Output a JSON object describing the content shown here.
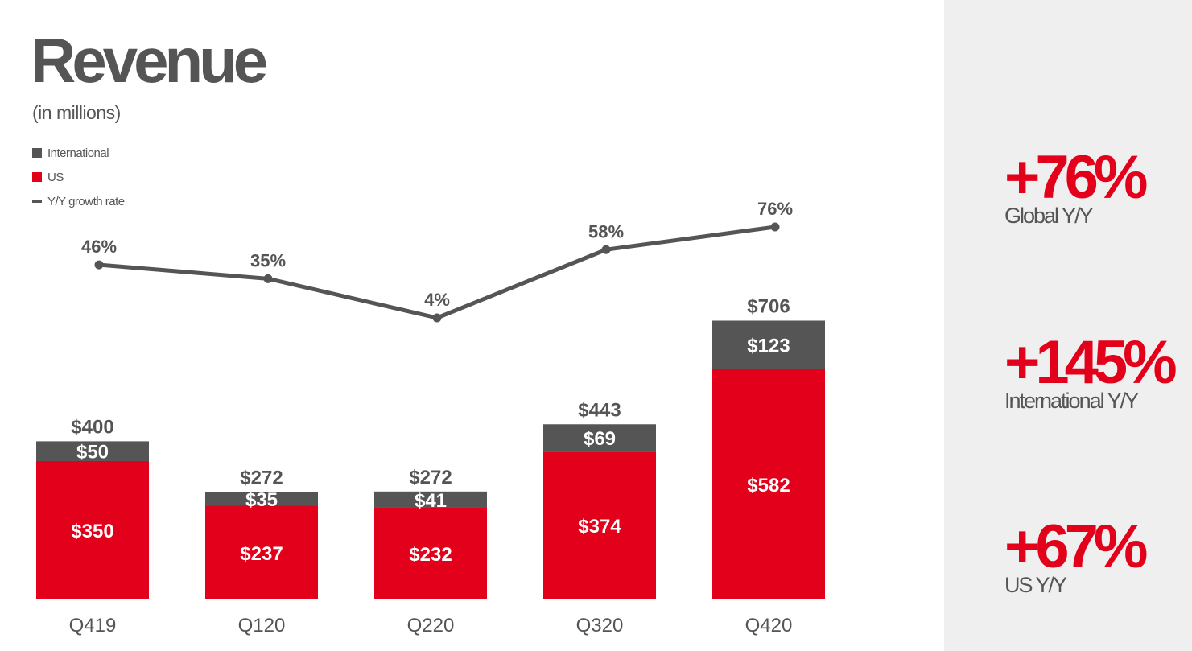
{
  "title": "Revenue",
  "subtitle": "(in millions)",
  "colors": {
    "international": "#555555",
    "us": "#e3001b",
    "growth": "#555555"
  },
  "chart_data": {
    "type": "bar",
    "stacked": true,
    "categories": [
      "Q419",
      "Q120",
      "Q220",
      "Q320",
      "Q420"
    ],
    "series": [
      {
        "name": "US",
        "values": [
          350,
          237,
          232,
          374,
          582
        ],
        "labels": [
          "$350",
          "$237",
          "$232",
          "$374",
          "$582"
        ]
      },
      {
        "name": "International",
        "values": [
          50,
          35,
          41,
          69,
          123
        ],
        "labels": [
          "$50",
          "$35",
          "$41",
          "$69",
          "$123"
        ]
      }
    ],
    "totals": [
      400,
      272,
      272,
      443,
      706
    ],
    "total_labels": [
      "$400",
      "$272",
      "$272",
      "$443",
      "$706"
    ],
    "line_series": {
      "name": "Y/Y growth rate",
      "values": [
        46,
        35,
        4,
        58,
        76
      ],
      "labels": [
        "46%",
        "35%",
        "4%",
        "58%",
        "76%"
      ]
    },
    "grid": false,
    "legend_position": "top-left"
  },
  "legend": [
    {
      "label": "International",
      "kind": "box",
      "color": "#555555"
    },
    {
      "label": "US",
      "kind": "box",
      "color": "#e3001b"
    },
    {
      "label": "Y/Y growth rate",
      "kind": "line",
      "color": "#555555"
    }
  ],
  "highlights": [
    {
      "value": "+76%",
      "label": "Global Y/Y"
    },
    {
      "value": "+145%",
      "label": "International Y/Y"
    },
    {
      "value": "+67%",
      "label": "US Y/Y"
    }
  ]
}
